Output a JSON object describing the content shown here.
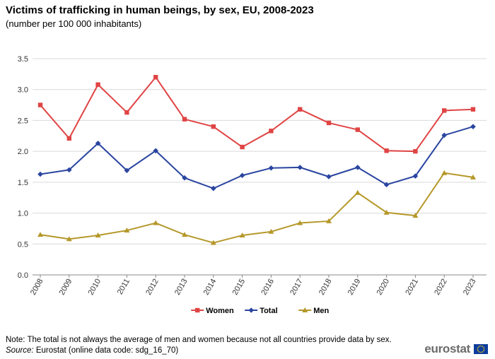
{
  "header": {
    "title": "Victims of trafficking in human beings, by sex, EU, 2008-2023",
    "subtitle": "(number  per 100 000 inhabitants)"
  },
  "footer": {
    "note": "Note: The total is not always the average of men and women because not all countries provide data by sex.",
    "source_label": "Source:",
    "source_text": " Eurostat (online data code: sdg_16_70)",
    "logo_text": "eurostat"
  },
  "chart_data": {
    "type": "line",
    "x": [
      "2008",
      "2009",
      "2010",
      "2011",
      "2012",
      "2013",
      "2014",
      "2015",
      "2016",
      "2017",
      "2018",
      "2019",
      "2020",
      "2021",
      "2022",
      "2023"
    ],
    "ylim": [
      0,
      3.5
    ],
    "yticks": [
      "0.0",
      "0.5",
      "1.0",
      "1.5",
      "2.0",
      "2.5",
      "3.0",
      "3.5"
    ],
    "grid": true,
    "legend_position": "bottom",
    "series": [
      {
        "name": "Women",
        "color": "#e04444",
        "marker": "square",
        "values": [
          2.75,
          2.21,
          3.08,
          2.63,
          3.2,
          2.52,
          2.4,
          2.07,
          2.33,
          2.68,
          2.46,
          2.35,
          2.01,
          2.0,
          2.66,
          2.68
        ]
      },
      {
        "name": "Total",
        "color": "#2a45a0",
        "marker": "diamond",
        "values": [
          1.63,
          1.7,
          2.13,
          1.69,
          2.01,
          1.57,
          1.4,
          1.61,
          1.73,
          1.74,
          1.59,
          1.74,
          1.46,
          1.6,
          2.26,
          2.4
        ]
      },
      {
        "name": "Men",
        "color": "#b5982a",
        "marker": "triangle",
        "values": [
          0.65,
          0.58,
          0.64,
          0.72,
          0.84,
          0.65,
          0.52,
          0.64,
          0.7,
          0.84,
          0.87,
          1.33,
          1.01,
          0.96,
          1.65,
          1.58
        ]
      }
    ]
  }
}
